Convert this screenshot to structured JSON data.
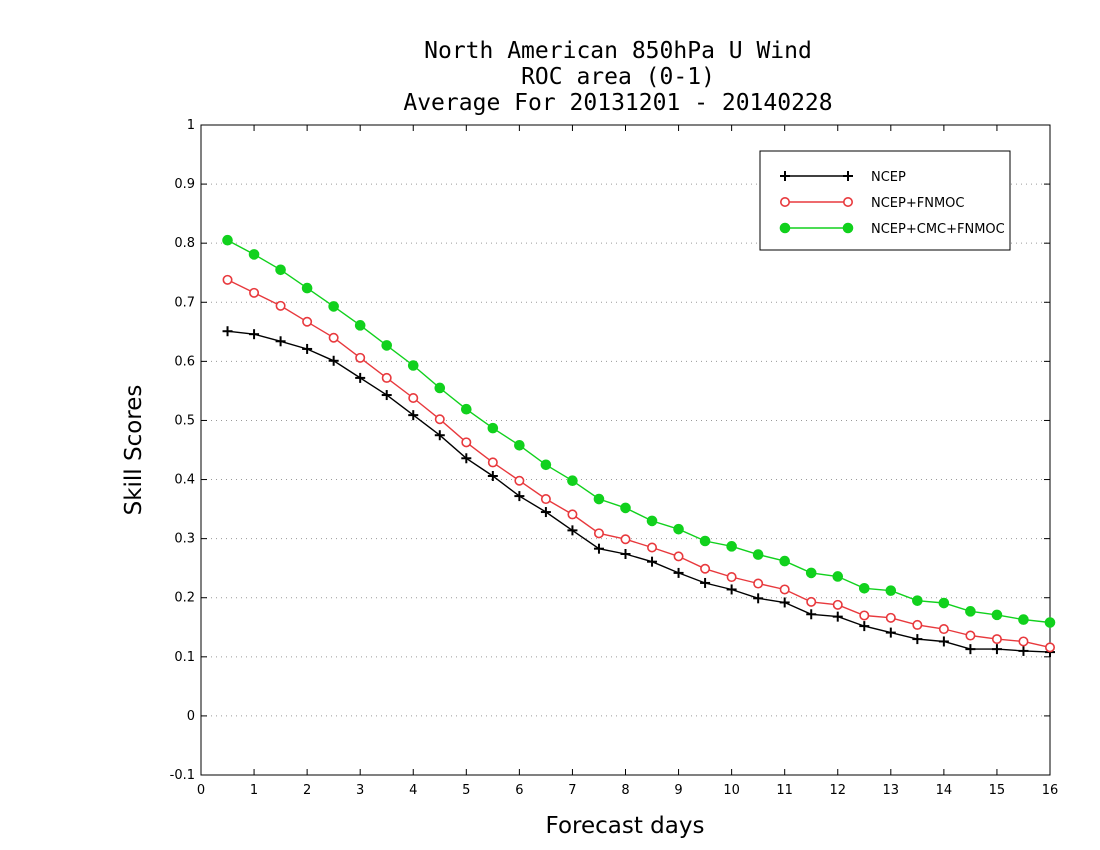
{
  "chart_data": {
    "type": "line",
    "title_lines": [
      "North American 850hPa U Wind",
      "ROC area (0-1)",
      "Average For 20131201 - 20140228"
    ],
    "xlabel": "Forecast days",
    "ylabel": "Skill Scores",
    "xlim": [
      0,
      16
    ],
    "ylim": [
      -0.1,
      1
    ],
    "xticks": [
      "0",
      "1",
      "2",
      "3",
      "4",
      "5",
      "6",
      "7",
      "8",
      "9",
      "10",
      "11",
      "12",
      "13",
      "14",
      "15",
      "16"
    ],
    "yticks": [
      "-0.1",
      "0",
      "0.1",
      "0.2",
      "0.3",
      "0.4",
      "0.5",
      "0.6",
      "0.7",
      "0.8",
      "0.9",
      "1"
    ],
    "grid": "dotted horizontal",
    "legend_position": "top-right",
    "x": [
      0.5,
      1,
      1.5,
      2,
      2.5,
      3,
      3.5,
      4,
      4.5,
      5,
      5.5,
      6,
      6.5,
      7,
      7.5,
      8,
      8.5,
      9,
      9.5,
      10,
      10.5,
      11,
      11.5,
      12,
      12.5,
      13,
      13.5,
      14,
      14.5,
      15,
      15.5,
      16
    ],
    "series": [
      {
        "name": "NCEP",
        "color": "#000000",
        "marker": "plus",
        "values": [
          0.651,
          0.646,
          0.634,
          0.621,
          0.601,
          0.572,
          0.543,
          0.509,
          0.475,
          0.436,
          0.406,
          0.372,
          0.345,
          0.314,
          0.283,
          0.274,
          0.261,
          0.242,
          0.225,
          0.214,
          0.199,
          0.192,
          0.172,
          0.168,
          0.152,
          0.141,
          0.13,
          0.126,
          0.113,
          0.113,
          0.11,
          0.108
        ]
      },
      {
        "name": "NCEP+FNMOC",
        "color": "#e8393d",
        "marker": "open-circle",
        "values": [
          0.738,
          0.716,
          0.694,
          0.667,
          0.64,
          0.606,
          0.572,
          0.538,
          0.502,
          0.463,
          0.429,
          0.398,
          0.367,
          0.341,
          0.309,
          0.299,
          0.285,
          0.27,
          0.249,
          0.235,
          0.224,
          0.214,
          0.193,
          0.188,
          0.17,
          0.166,
          0.154,
          0.147,
          0.136,
          0.13,
          0.126,
          0.116
        ]
      },
      {
        "name": "NCEP+CMC+FNMOC",
        "color": "#11d11d",
        "marker": "filled-circle",
        "values": [
          0.805,
          0.781,
          0.755,
          0.724,
          0.693,
          0.661,
          0.627,
          0.593,
          0.555,
          0.519,
          0.487,
          0.458,
          0.425,
          0.398,
          0.367,
          0.352,
          0.33,
          0.316,
          0.296,
          0.287,
          0.273,
          0.262,
          0.242,
          0.236,
          0.216,
          0.212,
          0.195,
          0.191,
          0.177,
          0.171,
          0.163,
          0.158
        ]
      }
    ]
  }
}
